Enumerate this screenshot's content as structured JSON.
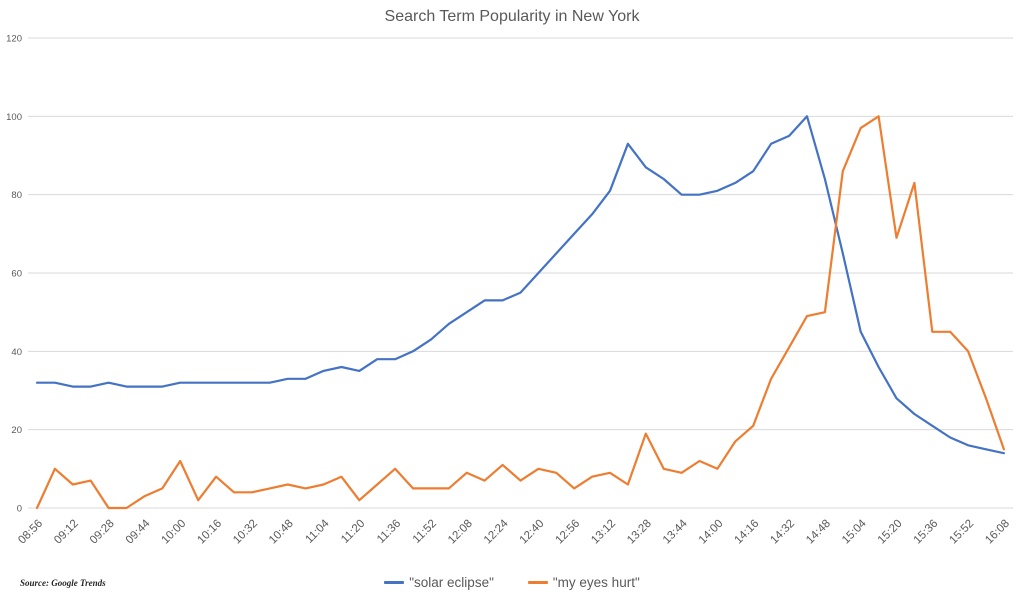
{
  "title": "Search Term Popularity in New York",
  "source_note": "Source: Google Trends",
  "legend": [
    {
      "label": "\"solar eclipse\"",
      "color": "#4472C4"
    },
    {
      "label": "\"my eyes hurt\"",
      "color": "#ED7D31"
    }
  ],
  "colors": {
    "grid": "#D9D9D9",
    "axis_text": "#595959",
    "title_text": "#595959",
    "series_blue": "#4472C4",
    "series_orange": "#ED7D31"
  },
  "chart_data": {
    "type": "line",
    "title": "Search Term Popularity in New York",
    "xlabel": "",
    "ylabel": "",
    "ylim": [
      0,
      120
    ],
    "yticks": [
      0,
      20,
      40,
      60,
      80,
      100,
      120
    ],
    "grid": true,
    "legend_position": "bottom",
    "x_tick_labels": [
      "08:56",
      "09:12",
      "09:28",
      "09:44",
      "10:00",
      "10:16",
      "10:32",
      "10:48",
      "11:04",
      "11:20",
      "11:36",
      "11:52",
      "12:08",
      "12:24",
      "12:40",
      "12:56",
      "13:12",
      "13:28",
      "13:44",
      "14:00",
      "14:16",
      "14:32",
      "14:48",
      "15:04",
      "15:20",
      "15:36",
      "15:52",
      "16:08"
    ],
    "x": [
      "08:56",
      "09:04",
      "09:12",
      "09:20",
      "09:28",
      "09:36",
      "09:44",
      "09:52",
      "10:00",
      "10:08",
      "10:16",
      "10:24",
      "10:32",
      "10:40",
      "10:48",
      "10:56",
      "11:04",
      "11:12",
      "11:20",
      "11:28",
      "11:36",
      "11:44",
      "11:52",
      "12:00",
      "12:08",
      "12:16",
      "12:24",
      "12:32",
      "12:40",
      "12:48",
      "12:56",
      "13:04",
      "13:12",
      "13:20",
      "13:28",
      "13:36",
      "13:44",
      "13:52",
      "14:00",
      "14:08",
      "14:16",
      "14:24",
      "14:32",
      "14:40",
      "14:48",
      "14:56",
      "15:04",
      "15:12",
      "15:20",
      "15:28",
      "15:36",
      "15:44",
      "15:52",
      "16:00",
      "16:08"
    ],
    "series": [
      {
        "name": "\"solar eclipse\"",
        "color": "#4472C4",
        "values": [
          32,
          32,
          31,
          31,
          32,
          31,
          31,
          31,
          32,
          32,
          32,
          32,
          32,
          32,
          33,
          33,
          35,
          36,
          35,
          38,
          38,
          40,
          43,
          47,
          50,
          53,
          53,
          55,
          60,
          65,
          70,
          75,
          81,
          93,
          87,
          84,
          80,
          80,
          81,
          83,
          86,
          93,
          95,
          100,
          84,
          65,
          45,
          36,
          28,
          24,
          21,
          18,
          16,
          15,
          14
        ]
      },
      {
        "name": "\"my eyes hurt\"",
        "color": "#ED7D31",
        "values": [
          0,
          10,
          6,
          7,
          0,
          0,
          3,
          5,
          12,
          2,
          8,
          4,
          4,
          5,
          6,
          5,
          6,
          8,
          2,
          6,
          10,
          5,
          5,
          5,
          9,
          7,
          11,
          7,
          10,
          9,
          5,
          8,
          9,
          6,
          19,
          10,
          9,
          12,
          10,
          17,
          21,
          33,
          41,
          49,
          50,
          86,
          97,
          100,
          69,
          83,
          45,
          45,
          40,
          28,
          15
        ]
      }
    ]
  }
}
